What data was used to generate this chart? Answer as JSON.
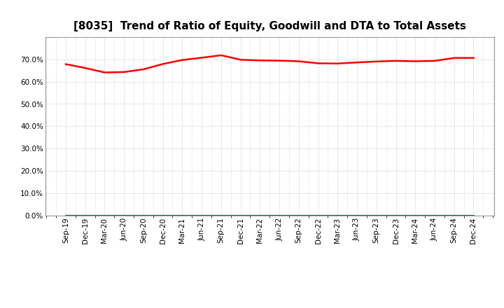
{
  "title": "[8035]  Trend of Ratio of Equity, Goodwill and DTA to Total Assets",
  "x_labels": [
    "Sep-19",
    "Dec-19",
    "Mar-20",
    "Jun-20",
    "Sep-20",
    "Dec-20",
    "Mar-21",
    "Jun-21",
    "Sep-21",
    "Dec-21",
    "Mar-22",
    "Jun-22",
    "Sep-22",
    "Dec-22",
    "Mar-23",
    "Jun-23",
    "Sep-23",
    "Dec-23",
    "Mar-24",
    "Jun-24",
    "Sep-24",
    "Dec-24"
  ],
  "equity": [
    0.678,
    0.661,
    0.641,
    0.643,
    0.655,
    0.679,
    0.697,
    0.707,
    0.718,
    0.698,
    0.695,
    0.694,
    0.691,
    0.682,
    0.681,
    0.686,
    0.69,
    0.693,
    0.691,
    0.693,
    0.706,
    0.706
  ],
  "goodwill": [
    0.0,
    0.0,
    0.0,
    0.0,
    0.0,
    0.0,
    0.0,
    0.0,
    0.0,
    0.0,
    0.0,
    0.0,
    0.0,
    0.0,
    0.0,
    0.0,
    0.0,
    0.0,
    0.0,
    0.0,
    0.0,
    0.0
  ],
  "dta": [
    0.0,
    0.0,
    0.0,
    0.0,
    0.0,
    0.0,
    0.0,
    0.0,
    0.0,
    0.0,
    0.0,
    0.0,
    0.0,
    0.0,
    0.0,
    0.0,
    0.0,
    0.0,
    0.0,
    0.0,
    0.0,
    0.0
  ],
  "equity_color": "#FF0000",
  "goodwill_color": "#0000FF",
  "dta_color": "#008000",
  "ylim": [
    0.0,
    0.8
  ],
  "yticks": [
    0.0,
    0.1,
    0.2,
    0.3,
    0.4,
    0.5,
    0.6,
    0.7
  ],
  "background_color": "#FFFFFF",
  "plot_bg_color": "#FFFFFF",
  "grid_color": "#BBBBBB",
  "title_fontsize": 11,
  "tick_fontsize": 7.5,
  "legend_fontsize": 8.5,
  "line_width": 1.8
}
